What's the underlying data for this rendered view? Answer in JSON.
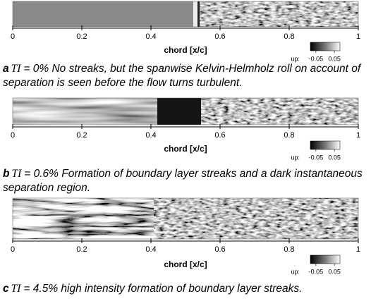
{
  "chart_data": [
    {
      "type": "image",
      "xlabel": "chord [x/c]",
      "xlim": [
        0,
        1
      ],
      "xticks": [
        0,
        0.2,
        0.4,
        0.6,
        0.8,
        1
      ],
      "colorbar_label": "up:",
      "clim": [
        -0.08,
        0.08
      ],
      "colorbar_ticks": [
        -0.05,
        0.05
      ],
      "caption_label": "a",
      "caption_symbol": "TI",
      "caption": "= 0% No streaks, but the spanwise Kelvin-Helmholz roll on account of separation is seen before the flow turns turbulent."
    },
    {
      "type": "image",
      "xlabel": "chord [x/c]",
      "xlim": [
        0,
        1
      ],
      "xticks": [
        0,
        0.2,
        0.4,
        0.6,
        0.8,
        1
      ],
      "colorbar_label": "up:",
      "clim": [
        -0.08,
        0.08
      ],
      "colorbar_ticks": [
        -0.05,
        0.05
      ],
      "caption_label": "b",
      "caption_symbol": "TI",
      "caption": "= 0.6% Formation of boundary layer streaks and a dark instantaneous separation region."
    },
    {
      "type": "image",
      "xlabel": "chord [x/c]",
      "xlim": [
        0,
        1
      ],
      "xticks": [
        0,
        0.2,
        0.4,
        0.6,
        0.8,
        1
      ],
      "colorbar_label": "up:",
      "clim": [
        -0.08,
        0.08
      ],
      "colorbar_ticks": [
        -0.05,
        0.05
      ],
      "caption_label": "c",
      "caption_symbol": "TI",
      "caption": "= 4.5% high intensity formation of boundary layer streaks."
    }
  ]
}
